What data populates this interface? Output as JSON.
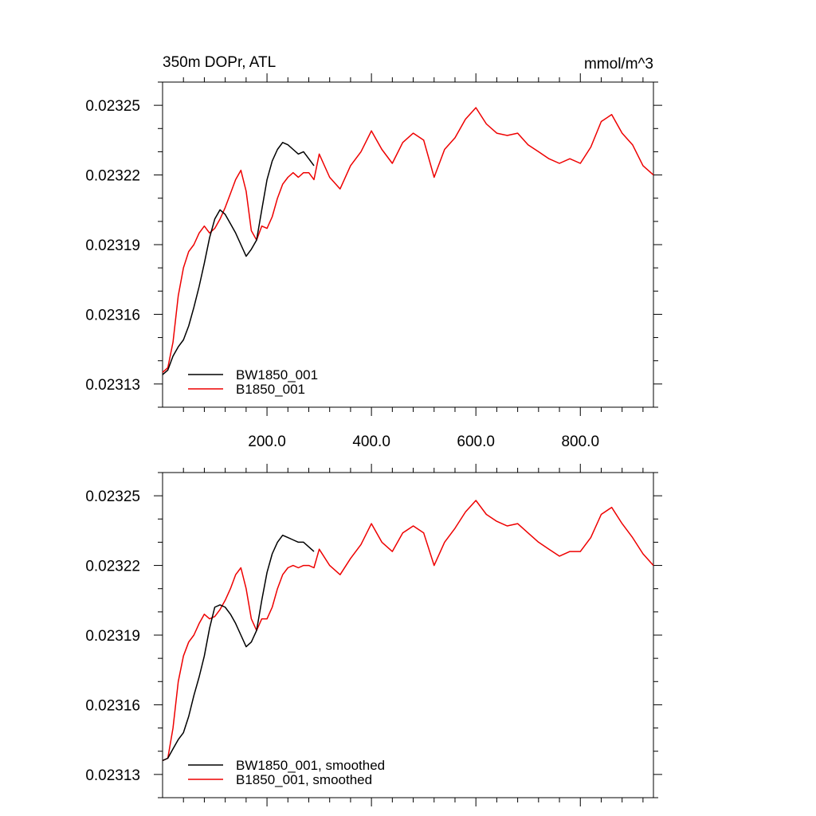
{
  "chart_data": [
    {
      "type": "line",
      "title": "350m DOPr, ATL",
      "units": "mmol/m^3",
      "xlim": [
        0,
        940
      ],
      "ylim": [
        0.02312,
        0.02326
      ],
      "x_tick_labels": [
        "200.0",
        "400.0",
        "600.0",
        "800.0"
      ],
      "y_tick_labels": [
        "0.02325",
        "0.02322",
        "0.02319",
        "0.02316",
        "0.02313"
      ],
      "legend_position": "bottom-left",
      "series": [
        {
          "name": "BW1850_001",
          "color": "#000000",
          "x": [
            0,
            10,
            20,
            30,
            40,
            50,
            60,
            70,
            80,
            90,
            100,
            110,
            120,
            130,
            140,
            150,
            160,
            170,
            180,
            190,
            200,
            210,
            220,
            230,
            240,
            250,
            260,
            270,
            280,
            290
          ],
          "y": [
            0.023134,
            0.023136,
            0.023142,
            0.023146,
            0.023149,
            0.023155,
            0.023163,
            0.023172,
            0.023182,
            0.023193,
            0.023201,
            0.023205,
            0.023203,
            0.023199,
            0.023195,
            0.02319,
            0.023185,
            0.023188,
            0.023192,
            0.023205,
            0.023218,
            0.023226,
            0.023231,
            0.023234,
            0.023233,
            0.023231,
            0.023229,
            0.02323,
            0.023227,
            0.023224
          ]
        },
        {
          "name": "B1850_001",
          "color": "#ee0000",
          "x": [
            0,
            10,
            20,
            30,
            40,
            50,
            60,
            70,
            80,
            90,
            100,
            110,
            120,
            130,
            140,
            150,
            160,
            170,
            180,
            190,
            200,
            210,
            220,
            230,
            240,
            250,
            260,
            270,
            280,
            290,
            300,
            320,
            340,
            360,
            380,
            400,
            420,
            440,
            460,
            480,
            500,
            520,
            540,
            560,
            580,
            600,
            620,
            640,
            660,
            680,
            700,
            720,
            740,
            760,
            780,
            800,
            820,
            840,
            860,
            880,
            900,
            920,
            940
          ],
          "y": [
            0.023135,
            0.023137,
            0.023148,
            0.023168,
            0.02318,
            0.023187,
            0.02319,
            0.023195,
            0.023198,
            0.023195,
            0.023197,
            0.023201,
            0.023206,
            0.023212,
            0.023218,
            0.023222,
            0.023213,
            0.023196,
            0.023192,
            0.023198,
            0.023197,
            0.023202,
            0.02321,
            0.023216,
            0.023219,
            0.023221,
            0.023219,
            0.023221,
            0.023221,
            0.023218,
            0.023229,
            0.023219,
            0.023214,
            0.023224,
            0.02323,
            0.023239,
            0.023231,
            0.023225,
            0.023234,
            0.023238,
            0.023235,
            0.023219,
            0.023231,
            0.023236,
            0.023244,
            0.023249,
            0.023242,
            0.023238,
            0.023237,
            0.023238,
            0.023233,
            0.02323,
            0.023227,
            0.023225,
            0.023227,
            0.023225,
            0.023232,
            0.023243,
            0.023246,
            0.023238,
            0.023233,
            0.023224,
            0.02322
          ]
        }
      ]
    },
    {
      "type": "line",
      "xlim": [
        0,
        940
      ],
      "ylim": [
        0.02312,
        0.02326
      ],
      "y_tick_labels": [
        "0.02325",
        "0.02322",
        "0.02319",
        "0.02316",
        "0.02313"
      ],
      "legend_position": "bottom-left",
      "series": [
        {
          "name": "BW1850_001, smoothed",
          "color": "#000000",
          "x": [
            0,
            10,
            20,
            30,
            40,
            50,
            60,
            70,
            80,
            90,
            100,
            110,
            120,
            130,
            140,
            150,
            160,
            170,
            180,
            190,
            200,
            210,
            220,
            230,
            240,
            250,
            260,
            270,
            280,
            290
          ],
          "y": [
            0.023136,
            0.023137,
            0.023141,
            0.023145,
            0.023148,
            0.023155,
            0.023164,
            0.023172,
            0.023181,
            0.023193,
            0.023202,
            0.023203,
            0.023202,
            0.023199,
            0.023195,
            0.02319,
            0.023185,
            0.023187,
            0.023192,
            0.023205,
            0.023217,
            0.023225,
            0.02323,
            0.023233,
            0.023232,
            0.023231,
            0.02323,
            0.02323,
            0.023228,
            0.023226
          ]
        },
        {
          "name": "B1850_001, smoothed",
          "color": "#ee0000",
          "x": [
            0,
            10,
            20,
            30,
            40,
            50,
            60,
            70,
            80,
            90,
            100,
            110,
            120,
            130,
            140,
            150,
            160,
            170,
            180,
            190,
            200,
            210,
            220,
            230,
            240,
            250,
            260,
            270,
            280,
            290,
            300,
            320,
            340,
            360,
            380,
            400,
            420,
            440,
            460,
            480,
            500,
            520,
            540,
            560,
            580,
            600,
            620,
            640,
            660,
            680,
            700,
            720,
            740,
            760,
            780,
            800,
            820,
            840,
            860,
            880,
            900,
            920,
            940
          ],
          "y": [
            0.023136,
            0.023137,
            0.02315,
            0.02317,
            0.023181,
            0.023187,
            0.02319,
            0.023195,
            0.023199,
            0.023197,
            0.023198,
            0.023201,
            0.023205,
            0.02321,
            0.023216,
            0.023219,
            0.02321,
            0.023197,
            0.023192,
            0.023197,
            0.023197,
            0.023202,
            0.02321,
            0.023216,
            0.023219,
            0.02322,
            0.023219,
            0.02322,
            0.02322,
            0.023219,
            0.023227,
            0.02322,
            0.023216,
            0.023223,
            0.023229,
            0.023238,
            0.02323,
            0.023226,
            0.023234,
            0.023237,
            0.023234,
            0.02322,
            0.02323,
            0.023236,
            0.023243,
            0.023248,
            0.023242,
            0.023239,
            0.023237,
            0.023238,
            0.023234,
            0.02323,
            0.023227,
            0.023224,
            0.023226,
            0.023226,
            0.023232,
            0.023242,
            0.023245,
            0.023238,
            0.023232,
            0.023225,
            0.02322
          ]
        }
      ]
    }
  ]
}
